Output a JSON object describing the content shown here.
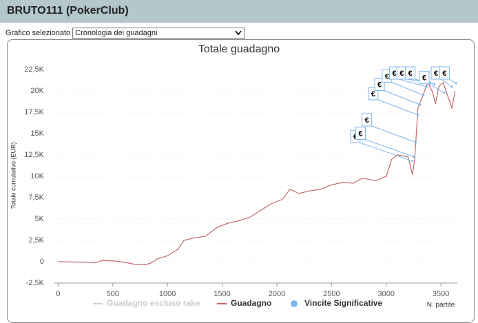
{
  "header": {
    "title": "BRUTO111 (PokerClub)"
  },
  "selector": {
    "label": "Grafico selezionato",
    "value": "Cronologia dei guadagni"
  },
  "chart_data": {
    "type": "line",
    "title": "Totale guadagno",
    "y_label": "Totale cumulativo (EUR)",
    "x_label": "N. partite",
    "xlim": [
      -40,
      3650
    ],
    "xticks": [
      0,
      500,
      1000,
      1500,
      2000,
      2500,
      3000,
      3500
    ],
    "ylim": [
      -2500,
      23000
    ],
    "yticks": [
      {
        "value": -2500,
        "label": "-2,5K"
      },
      0,
      {
        "value": 2500,
        "label": "2,5K"
      },
      {
        "value": 5000,
        "label": "5K"
      },
      {
        "value": 7500,
        "label": "7,5K"
      },
      {
        "value": 10000,
        "label": "10K"
      },
      {
        "value": 12500,
        "label": "12,5K"
      },
      {
        "value": 15000,
        "label": "15K"
      },
      {
        "value": 17500,
        "label": "17,5K"
      },
      {
        "value": 20000,
        "label": "20K"
      },
      {
        "value": 22500,
        "label": "22,5K"
      }
    ],
    "grid": true,
    "legend": "bottom",
    "flag_label": "€",
    "series": [
      {
        "name": "Guadagno escluso rake",
        "color": "#cccccc",
        "visible": false
      },
      {
        "name": "Guadagno",
        "color": "#c0686c",
        "x": [
          0,
          200,
          350,
          400,
          500,
          600,
          700,
          800,
          850,
          900,
          1000,
          1100,
          1150,
          1250,
          1350,
          1450,
          1550,
          1650,
          1750,
          1850,
          1950,
          2050,
          2120,
          2200,
          2300,
          2400,
          2500,
          2600,
          2700,
          2780,
          2900,
          3000,
          3050,
          3100,
          3200,
          3240,
          3260,
          3290,
          3320,
          3380,
          3420,
          3450,
          3480,
          3520,
          3560,
          3600,
          3630
        ],
        "values": [
          0,
          -50,
          -100,
          150,
          100,
          -50,
          -300,
          -350,
          -150,
          300,
          700,
          1500,
          2500,
          2800,
          3000,
          4000,
          4500,
          4800,
          5200,
          6000,
          6800,
          7300,
          8500,
          8000,
          8300,
          8500,
          9000,
          9300,
          9200,
          9800,
          9500,
          10000,
          12000,
          12500,
          12300,
          10200,
          12000,
          18000,
          19000,
          21000,
          20000,
          18500,
          20500,
          21000,
          19500,
          18000,
          20000
        ]
      },
      {
        "name": "Vincite Significative",
        "color": "#7cb5ec",
        "x": [
          3240,
          3250,
          3270,
          3290,
          3310,
          3340,
          3370,
          3400,
          3440,
          3530,
          3600,
          3640
        ],
        "values": [
          11800,
          12300,
          14000,
          17200,
          18400,
          19500,
          20500,
          21000,
          20800,
          19800,
          20500,
          20900
        ]
      }
    ]
  }
}
